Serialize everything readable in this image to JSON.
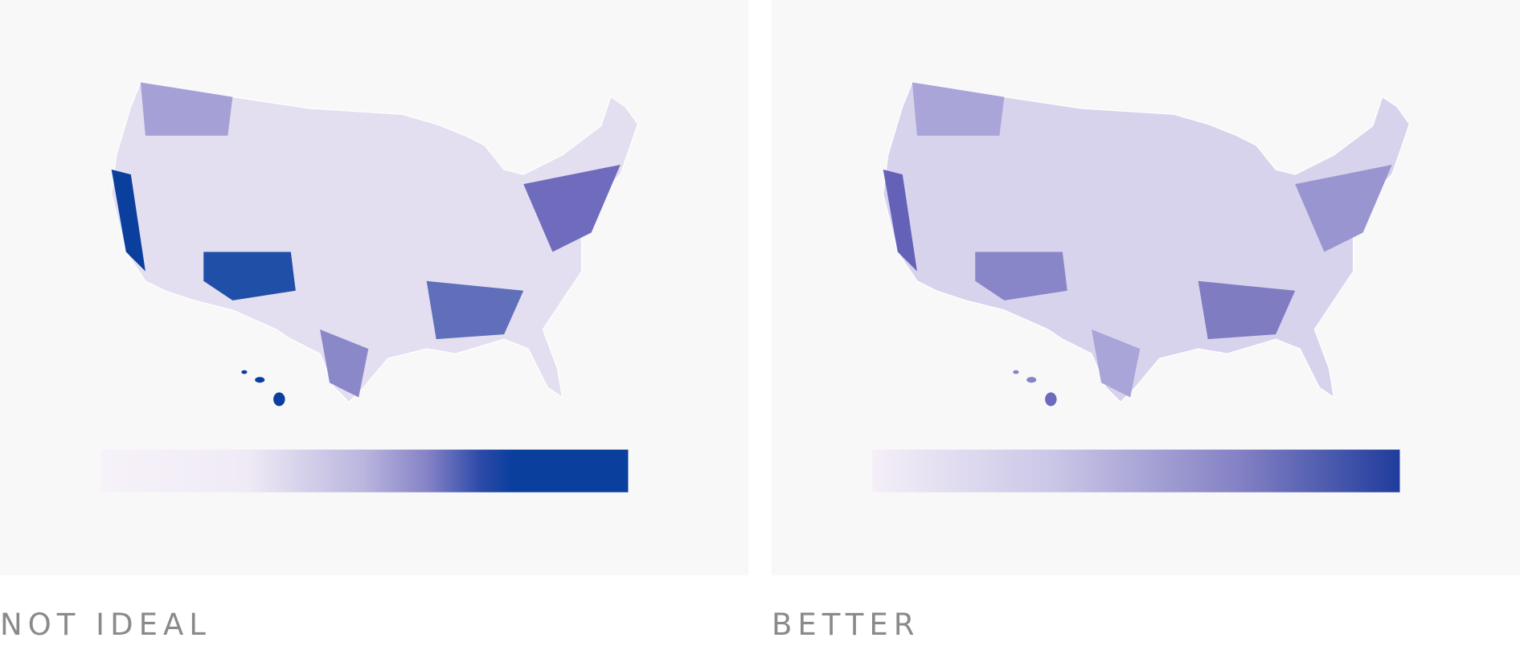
{
  "panels": [
    {
      "label": "NOT IDEAL"
    },
    {
      "label": "BETTER"
    }
  ]
}
